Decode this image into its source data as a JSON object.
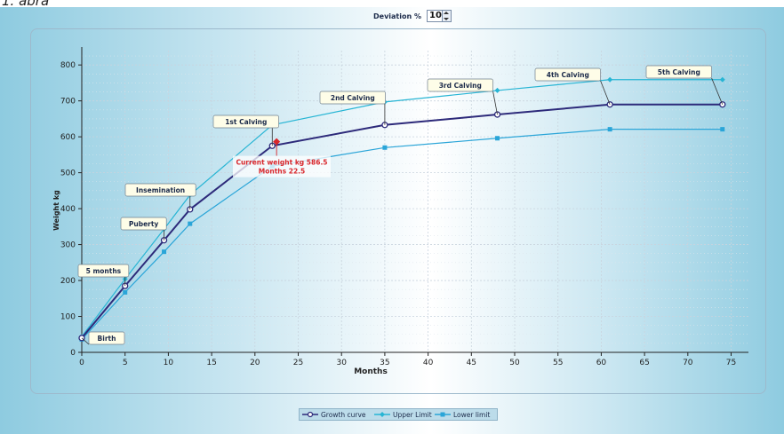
{
  "header_fragment": "1. abra",
  "deviation": {
    "label": "Deviation %",
    "value": "10"
  },
  "colors": {
    "growth": "#2d2a7a",
    "upper": "#27b5d4",
    "lower": "#2aa5d8",
    "grid": "#c9d4de",
    "annotation_red": "#d8262b"
  },
  "chart_data": {
    "type": "line",
    "xlabel": "Months",
    "ylabel": "Weight kg",
    "xlim": [
      0,
      77
    ],
    "ylim": [
      0,
      840
    ],
    "xticks": [
      0,
      5,
      10,
      15,
      20,
      25,
      30,
      35,
      40,
      45,
      50,
      55,
      60,
      65,
      70,
      75
    ],
    "yticks": [
      0,
      100,
      200,
      300,
      400,
      500,
      600,
      700,
      800
    ],
    "grid": true,
    "legend_position": "bottom-center",
    "series": [
      {
        "name": "Growth curve",
        "x": [
          0,
          5,
          9.5,
          12.5,
          22,
          35,
          48,
          61,
          74
        ],
        "y": [
          40,
          185,
          312,
          398,
          575,
          633,
          662,
          690,
          690
        ]
      },
      {
        "name": "Upper Limit",
        "x": [
          0,
          5,
          9.5,
          12.5,
          22,
          35,
          48,
          61,
          74
        ],
        "y": [
          44,
          204,
          343,
          438,
          633,
          697,
          729,
          759,
          759
        ]
      },
      {
        "name": "Lower limit",
        "x": [
          0,
          5,
          9.5,
          12.5,
          22,
          35,
          48,
          61,
          74
        ],
        "y": [
          36,
          167,
          280,
          358,
          518,
          570,
          596,
          621,
          621
        ]
      }
    ],
    "milestones": [
      {
        "label": "Birth",
        "x": 0,
        "y": 40
      },
      {
        "label": "5 months",
        "x": 5,
        "y": 185
      },
      {
        "label": "Puberty",
        "x": 9.5,
        "y": 312
      },
      {
        "label": "Insemination",
        "x": 12.5,
        "y": 398
      },
      {
        "label": "1st Calving",
        "x": 22,
        "y": 575
      },
      {
        "label": "2nd Calving",
        "x": 35,
        "y": 633
      },
      {
        "label": "3rd Calving",
        "x": 48,
        "y": 662
      },
      {
        "label": "4th Calving",
        "x": 61,
        "y": 690
      },
      {
        "label": "5th Calving",
        "x": 74,
        "y": 690
      }
    ],
    "current": {
      "line1": "Current weight kg 586.5",
      "line2": "Months 22.5",
      "x": 22.5,
      "y": 586.5
    }
  }
}
